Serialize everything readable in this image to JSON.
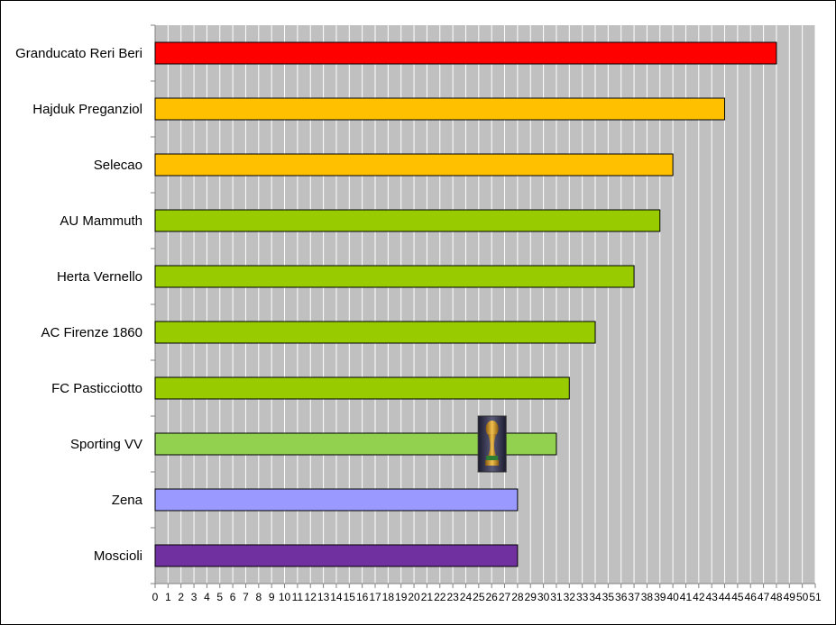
{
  "chart_data": {
    "type": "bar",
    "orientation": "horizontal",
    "title": "",
    "xlabel": "",
    "ylabel": "",
    "xlim": [
      0,
      51
    ],
    "x_ticks": [
      "0",
      "1",
      "2",
      "3",
      "4",
      "5",
      "6",
      "7",
      "8",
      "9",
      "10",
      "11",
      "12",
      "13",
      "14",
      "15",
      "16",
      "17",
      "18",
      "19",
      "20",
      "21",
      "22",
      "23",
      "24",
      "25",
      "26",
      "27",
      "28",
      "29",
      "30",
      "31",
      "32",
      "33",
      "34",
      "35",
      "36",
      "37",
      "38",
      "39",
      "40",
      "41",
      "42",
      "43",
      "44",
      "45",
      "46",
      "47",
      "48",
      "49",
      "50",
      "51"
    ],
    "grid": "vertical",
    "legend": "none",
    "plot_background": "#c0c0c0",
    "categories": [
      "Granducato Reri Beri",
      "Hajduk Preganziol",
      "Selecao",
      "AU Mammuth",
      "Herta Vernello",
      "AC Firenze 1860",
      "FC Pasticciotto",
      "Sporting VV",
      "Zena",
      "Moscioli"
    ],
    "values": [
      48,
      44,
      40,
      39,
      37,
      34,
      32,
      31,
      28,
      28
    ],
    "bar_colors": [
      "#ff0000",
      "#ffc000",
      "#ffc000",
      "#99cc00",
      "#99cc00",
      "#99cc00",
      "#99cc00",
      "#92d050",
      "#9999ff",
      "#7030a0"
    ],
    "annotation": {
      "icon": "trophy-icon",
      "category": "Sporting VV",
      "at_value": 26
    }
  }
}
